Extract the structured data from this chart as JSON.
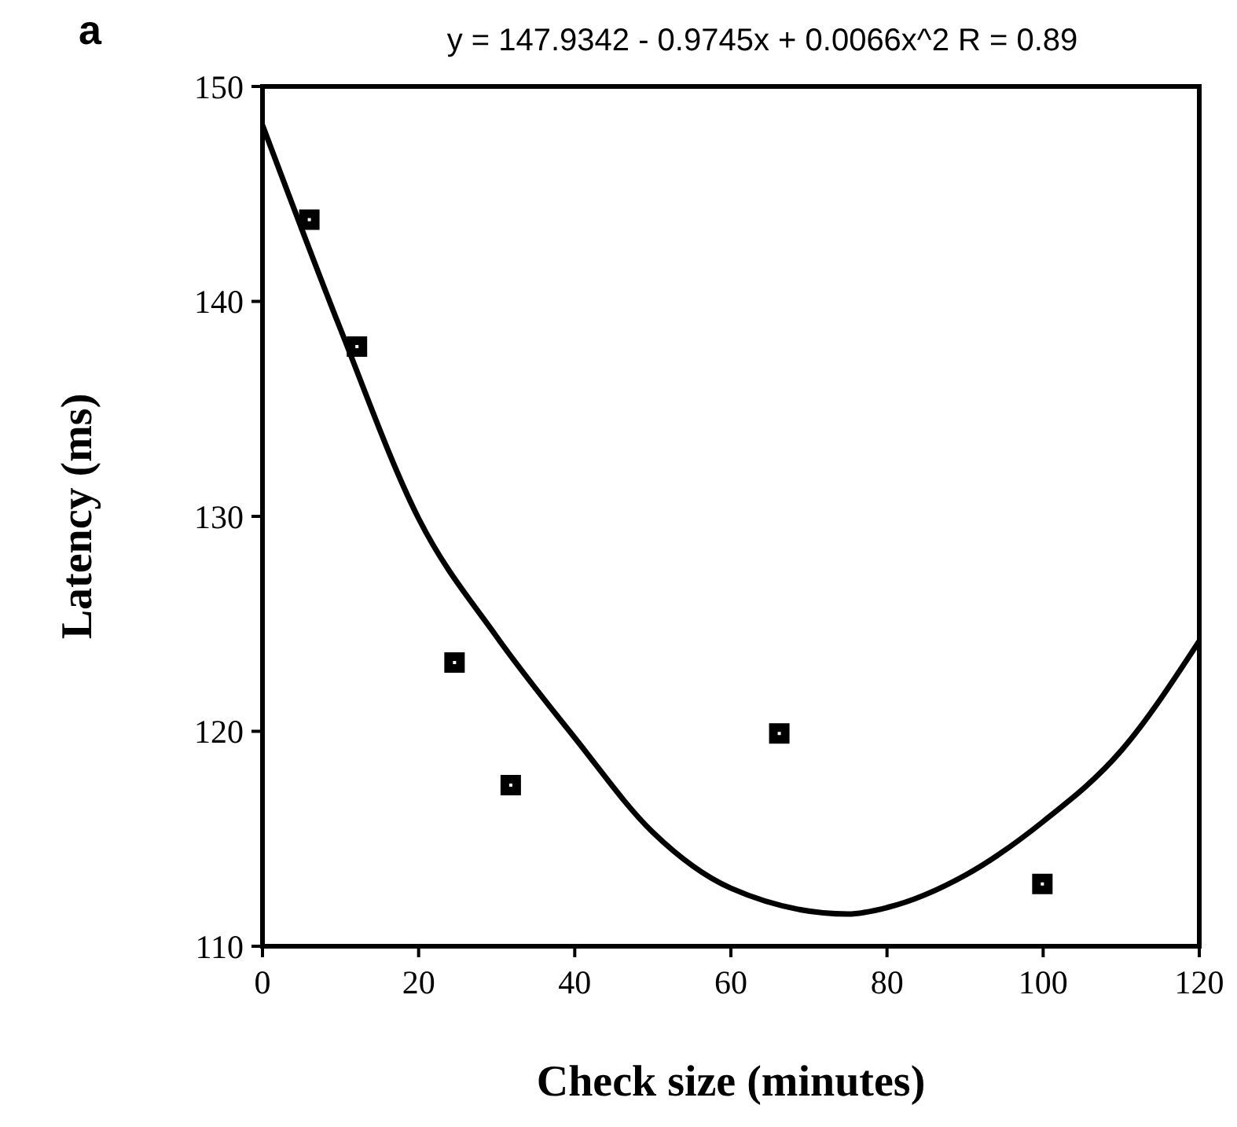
{
  "chart_data": {
    "type": "scatter",
    "title": "y = 147.9342 - 0.9745x + 0.0066x^2   R = 0.89",
    "annotations": [
      "a"
    ],
    "xlabel": "Check size (minutes)",
    "ylabel": "Latency (ms)",
    "xlim": [
      0,
      120
    ],
    "ylim": [
      110,
      150
    ],
    "xticks": [
      0,
      20,
      40,
      60,
      80,
      100,
      120
    ],
    "yticks": [
      110,
      120,
      130,
      140,
      150
    ],
    "grid": false,
    "series": [
      {
        "color": "#000000",
        "marker": "square",
        "x": [
          6,
          12.1,
          24.6,
          31.8,
          66.2,
          99.9
        ],
        "values": [
          143.8,
          137.9,
          123.2,
          117.5,
          119.9,
          112.9
        ]
      },
      {
        "type": "line",
        "color": "#000000",
        "marker": "none",
        "line_style": "solid",
        "x": [
          0,
          10,
          20,
          30,
          40,
          50,
          60,
          75,
          80,
          90,
          100,
          110,
          120
        ],
        "values": [
          148.2,
          138.7,
          129.9,
          124.4,
          119.7,
          115.3,
          112.7,
          111.5,
          111.8,
          113.3,
          115.8,
          119.1,
          124.2
        ]
      }
    ]
  }
}
